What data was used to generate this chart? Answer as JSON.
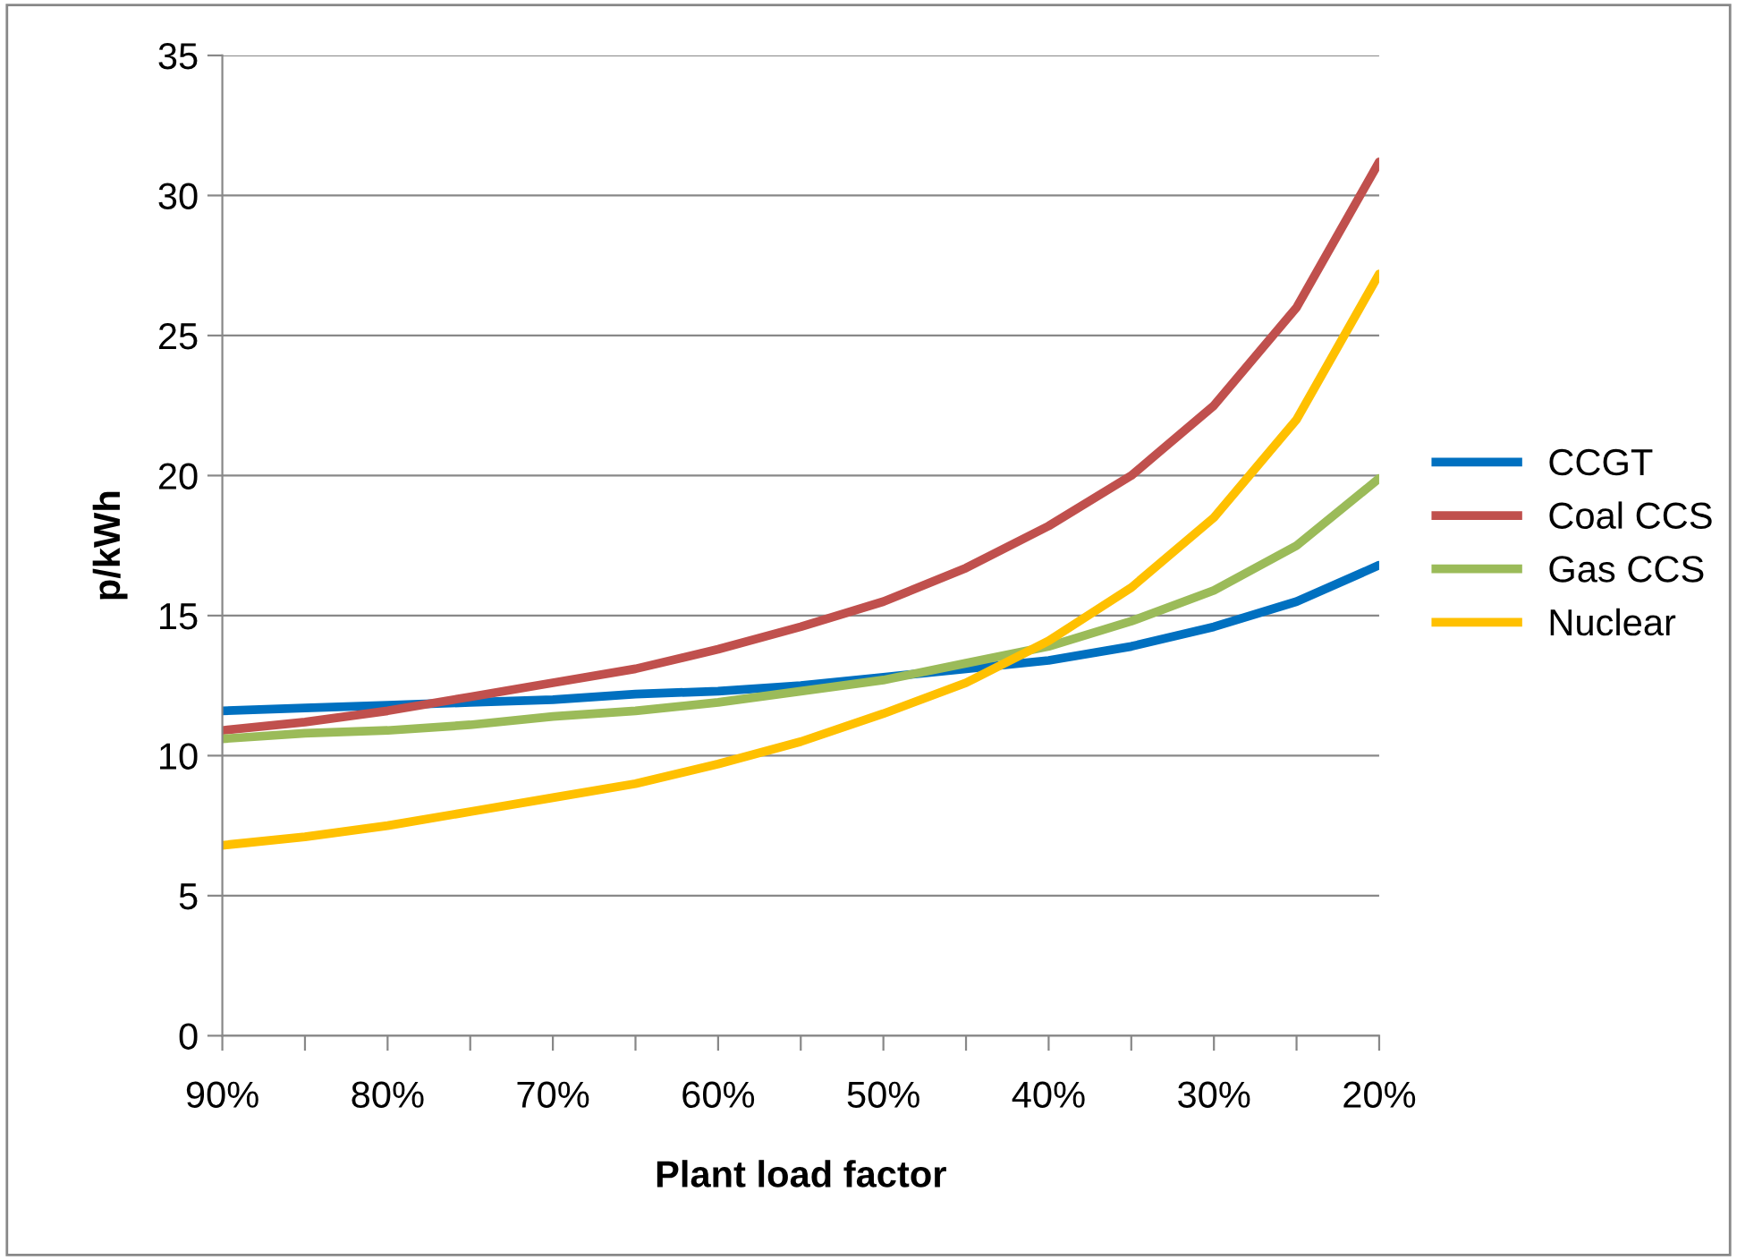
{
  "chart_data": {
    "type": "line",
    "xlabel": "Plant load factor",
    "ylabel": "p/kWh",
    "x": [
      90,
      85,
      80,
      75,
      70,
      65,
      60,
      55,
      50,
      45,
      40,
      35,
      30,
      25,
      20
    ],
    "series": [
      {
        "name": "CCGT",
        "color": "#0070c0",
        "values": [
          11.6,
          11.7,
          11.8,
          11.9,
          12.0,
          12.2,
          12.3,
          12.5,
          12.8,
          13.1,
          13.4,
          13.9,
          14.6,
          15.5,
          16.8
        ]
      },
      {
        "name": "Coal CCS",
        "color": "#c0504d",
        "values": [
          10.9,
          11.2,
          11.6,
          12.1,
          12.6,
          13.1,
          13.8,
          14.6,
          15.5,
          16.7,
          18.2,
          20.0,
          22.5,
          26.0,
          31.2
        ]
      },
      {
        "name": "Gas CCS",
        "color": "#9bbb59",
        "values": [
          10.6,
          10.8,
          10.9,
          11.1,
          11.4,
          11.6,
          11.9,
          12.3,
          12.7,
          13.3,
          13.9,
          14.8,
          15.9,
          17.5,
          19.9
        ]
      },
      {
        "name": "Nuclear",
        "color": "#ffc000",
        "values": [
          6.8,
          7.1,
          7.5,
          8.0,
          8.5,
          9.0,
          9.7,
          10.5,
          11.5,
          12.6,
          14.1,
          16.0,
          18.5,
          22.0,
          27.2
        ]
      }
    ],
    "xlim": [
      90,
      20
    ],
    "xticks": [
      {
        "value": 90,
        "label": "90%"
      },
      {
        "value": 85,
        "label": null
      },
      {
        "value": 80,
        "label": "80%"
      },
      {
        "value": 75,
        "label": null
      },
      {
        "value": 70,
        "label": "70%"
      },
      {
        "value": 65,
        "label": null
      },
      {
        "value": 60,
        "label": "60%"
      },
      {
        "value": 55,
        "label": null
      },
      {
        "value": 50,
        "label": "50%"
      },
      {
        "value": 45,
        "label": null
      },
      {
        "value": 40,
        "label": "40%"
      },
      {
        "value": 35,
        "label": null
      },
      {
        "value": 30,
        "label": "30%"
      },
      {
        "value": 25,
        "label": null
      },
      {
        "value": 20,
        "label": "20%"
      }
    ],
    "ylim": [
      0,
      35
    ],
    "yticks": [
      0,
      5,
      10,
      15,
      20,
      25,
      30,
      35
    ],
    "grid": "y",
    "legend": "right",
    "marker": "none",
    "line_style": "solid"
  }
}
